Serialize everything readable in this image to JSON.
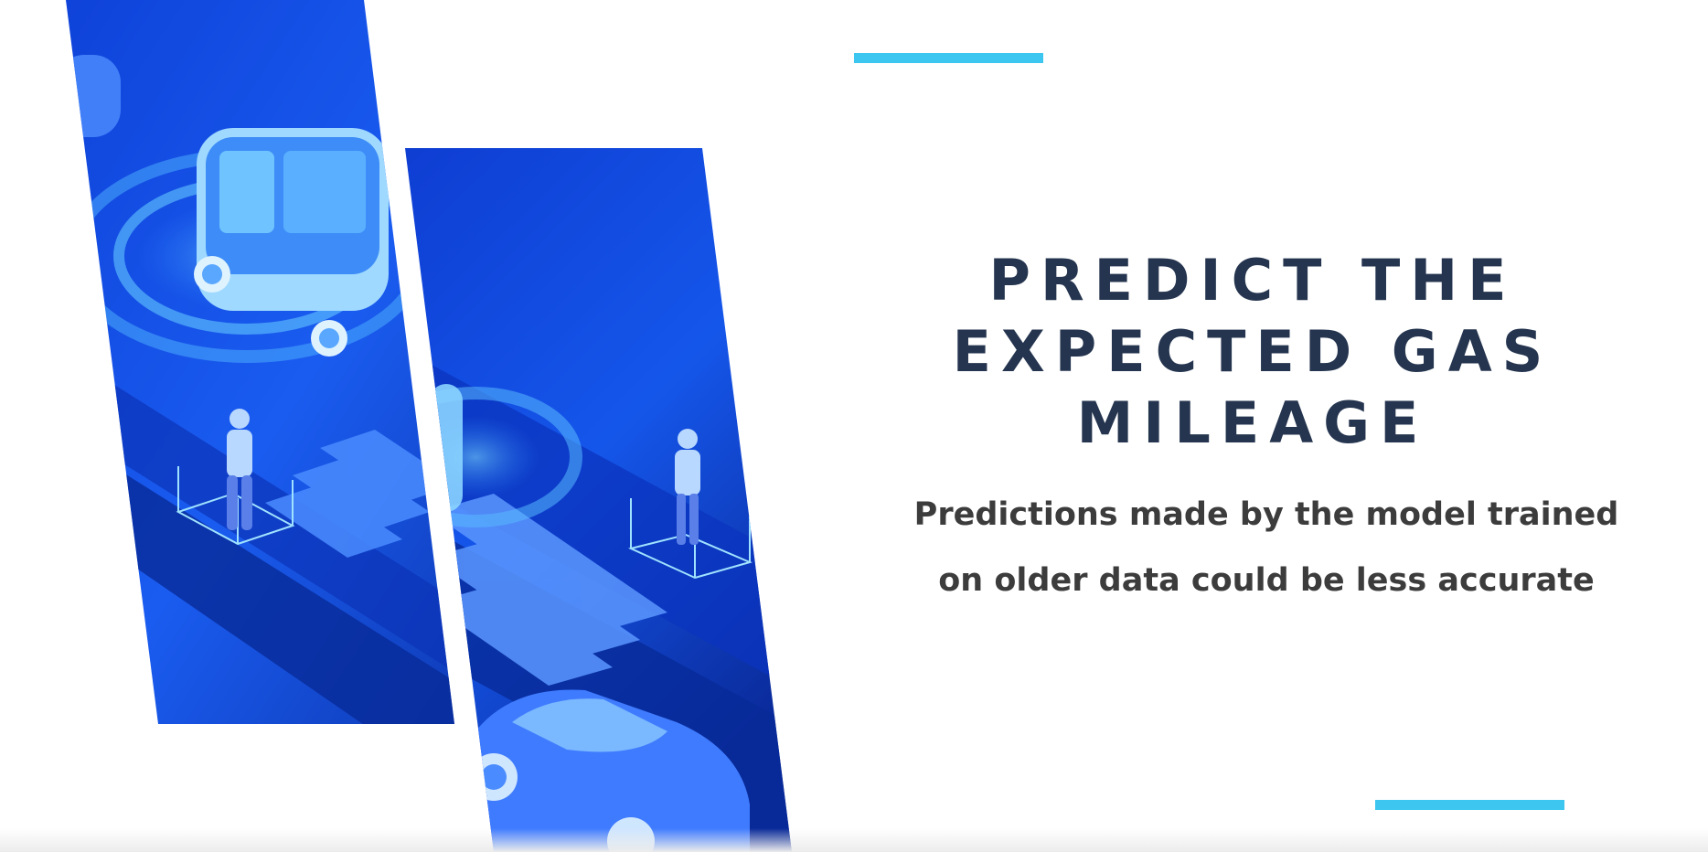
{
  "slide": {
    "title_line1": "PREDICT THE",
    "title_line2": "EXPECTED GAS",
    "title_line3": "MILEAGE",
    "subtitle_line1": "Predictions made by the model trained",
    "subtitle_line2": "on older data could be less accurate"
  },
  "colors": {
    "accent": "#3cc6f0",
    "title": "#25354f",
    "subtitle": "#3c3c3c",
    "panel_blue": "#1446d8",
    "panel_dark": "#0a2aa8"
  },
  "illustration": {
    "description_icons": [
      "autonomous-shuttle-icon",
      "pedestrian-icon",
      "car-icon"
    ]
  }
}
